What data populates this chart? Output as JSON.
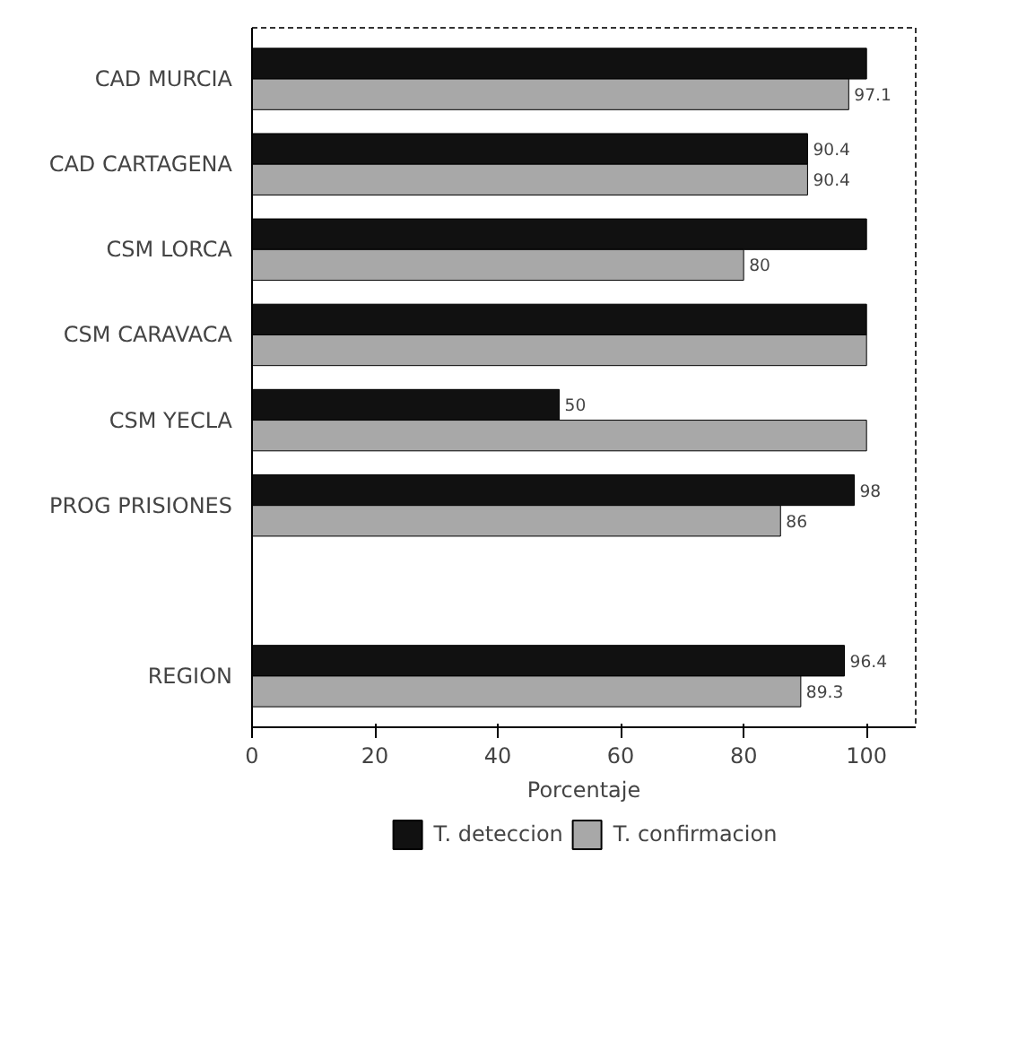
{
  "chart_data": {
    "type": "bar",
    "orientation": "horizontal",
    "xlabel": "Porcentaje",
    "categories": [
      "CAD MURCIA",
      "CAD CARTAGENA",
      "CSM LORCA",
      "CSM CARAVACA",
      "CSM YECLA",
      "PROG PRISIONES",
      null,
      "REGION"
    ],
    "series": [
      {
        "name": "T. deteccion",
        "color": "#111111",
        "values": [
          100,
          90.4,
          100,
          100,
          50,
          98,
          null,
          96.4
        ],
        "value_labels": [
          null,
          "90.4",
          null,
          null,
          "50",
          "98",
          null,
          "96.4"
        ]
      },
      {
        "name": "T. confirmacion",
        "color": "#a8a8a8",
        "values": [
          97.1,
          90.4,
          80,
          100,
          100,
          86,
          null,
          89.3
        ],
        "value_labels": [
          "97.1",
          "90.4",
          "80",
          null,
          null,
          "86",
          null,
          "89.3"
        ]
      }
    ],
    "xlim": [
      0,
      108
    ],
    "xticks": [
      0,
      20,
      40,
      60,
      80,
      100
    ],
    "grid": false,
    "legend": "bottom"
  }
}
